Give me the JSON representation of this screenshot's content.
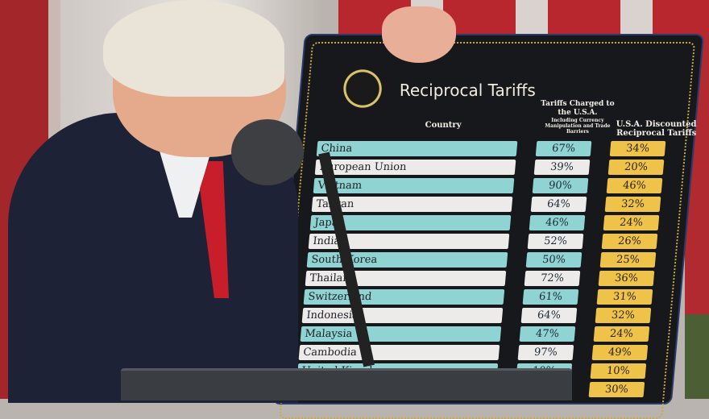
{
  "board": {
    "title": "Reciprocal Tariffs",
    "seal": "Seal of the President of the United States",
    "headers": {
      "country": "Country",
      "charged": "Tariffs Charged to the U.S.A.",
      "charged_note": "Including Currency Manipulation and Trade Barriers",
      "reciprocal": "U.S.A. Discounted Reciprocal Tariffs"
    },
    "rows": [
      {
        "country": "China",
        "charged": "67%",
        "reciprocal": "34%"
      },
      {
        "country": "European Union",
        "charged": "39%",
        "reciprocal": "20%"
      },
      {
        "country": "Vietnam",
        "charged": "90%",
        "reciprocal": "46%"
      },
      {
        "country": "Taiwan",
        "charged": "64%",
        "reciprocal": "32%"
      },
      {
        "country": "Japan",
        "charged": "46%",
        "reciprocal": "24%"
      },
      {
        "country": "India",
        "charged": "52%",
        "reciprocal": "26%"
      },
      {
        "country": "South Korea",
        "charged": "50%",
        "reciprocal": "25%"
      },
      {
        "country": "Thailand",
        "charged": "72%",
        "reciprocal": "36%"
      },
      {
        "country": "Switzerland",
        "charged": "61%",
        "reciprocal": "31%"
      },
      {
        "country": "Indonesia",
        "charged": "64%",
        "reciprocal": "32%"
      },
      {
        "country": "Malaysia",
        "charged": "47%",
        "reciprocal": "24%"
      },
      {
        "country": "Cambodia",
        "charged": "97%",
        "reciprocal": "49%"
      },
      {
        "country": "United Kingdom",
        "charged": "10%",
        "reciprocal": "10%"
      },
      {
        "country": "",
        "charged": "",
        "reciprocal": "30%"
      }
    ],
    "colors": {
      "teal": "#8fd3d3",
      "white": "#ecebea",
      "gold": "#efc34a",
      "board": "#17181c"
    }
  }
}
